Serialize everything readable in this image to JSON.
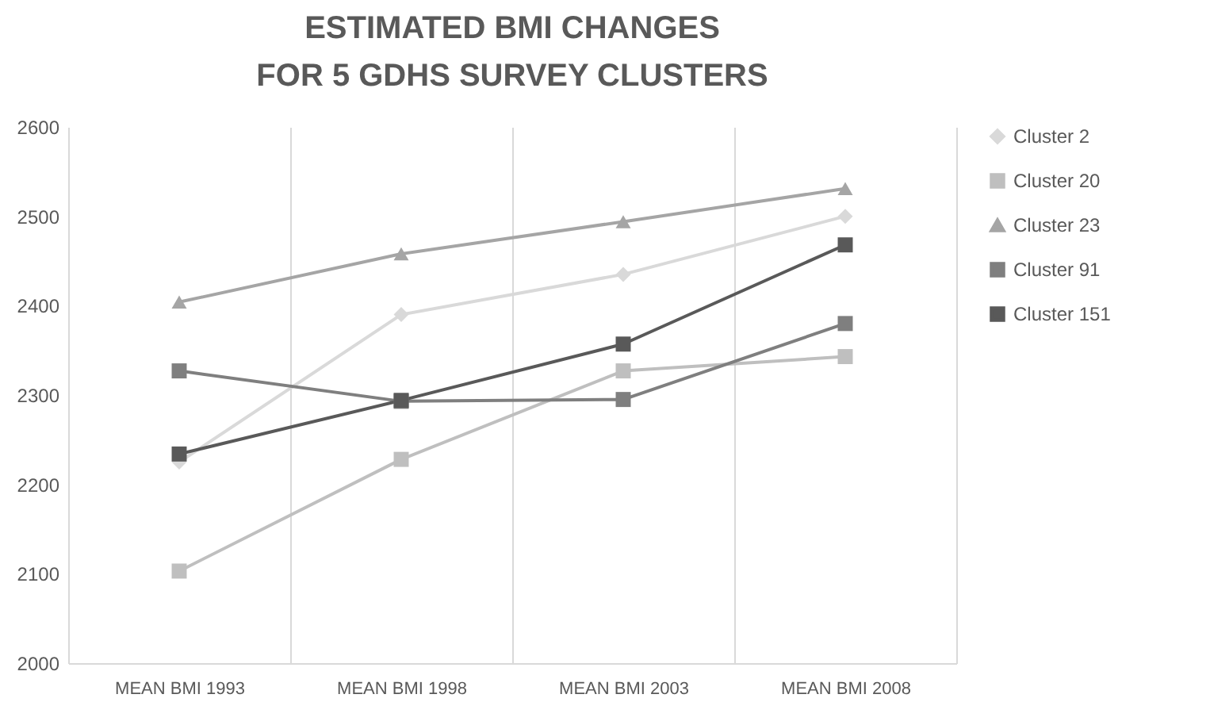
{
  "chart_data": {
    "type": "line",
    "title": "ESTIMATED BMI CHANGES FOR 5 GDHS SURVEY CLUSTERS",
    "categories": [
      "MEAN  BMI 1993",
      "MEAN  BMI 1998",
      "MEAN  BMI 2003",
      "MEAN  BMI 2008"
    ],
    "series": [
      {
        "name": "Cluster 2",
        "color": "#d9d9d9",
        "marker": "diamond",
        "values": [
          2225,
          2390,
          2435,
          2500
        ]
      },
      {
        "name": "Cluster 20",
        "color": "#bfbfbf",
        "marker": "square",
        "values": [
          2103,
          2228,
          2327,
          2343
        ]
      },
      {
        "name": "Cluster 23",
        "color": "#a5a5a5",
        "marker": "triangle",
        "values": [
          2404,
          2458,
          2494,
          2531
        ]
      },
      {
        "name": "Cluster 91",
        "color": "#7f7f7f",
        "marker": "square",
        "values": [
          2327,
          2293,
          2295,
          2380
        ]
      },
      {
        "name": "Cluster 151",
        "color": "#595959",
        "marker": "square",
        "values": [
          2234,
          2294,
          2357,
          2468
        ]
      }
    ],
    "ylim": [
      2000,
      2600
    ],
    "yticks": [
      2000,
      2100,
      2200,
      2300,
      2400,
      2500,
      2600
    ],
    "grid": "x",
    "legend": "right",
    "line_style": "solid"
  }
}
